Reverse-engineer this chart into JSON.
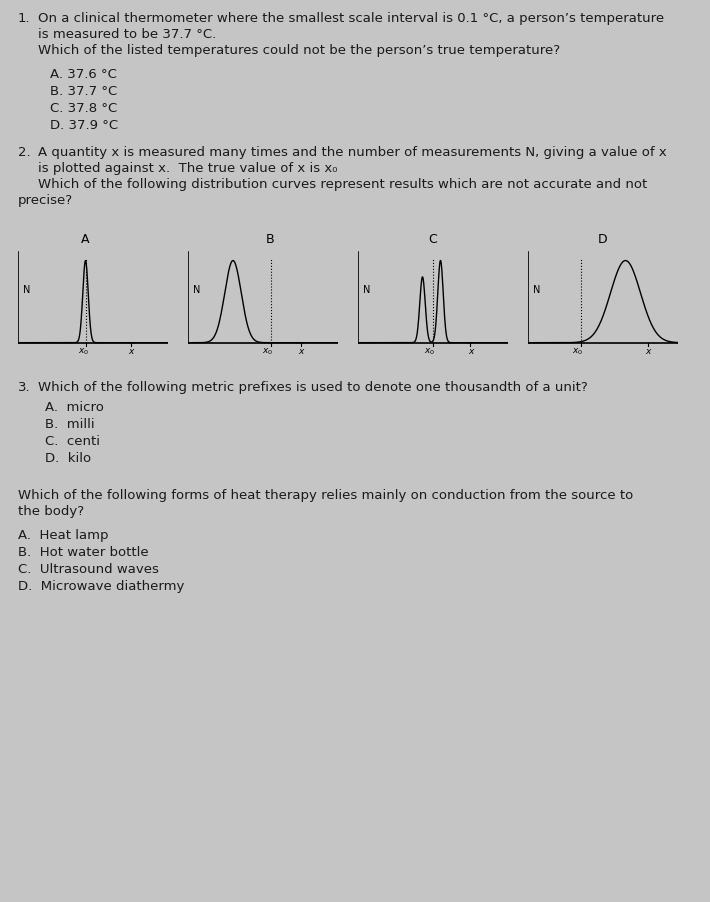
{
  "bg_color": "#c5c5c5",
  "text_color": "#1a1a1a",
  "font_size_body": 9.5,
  "q1_num": "1.",
  "q1_line1": "On a clinical thermometer where the smallest scale interval is 0.1 °C, a person’s temperature",
  "q1_line2": "is measured to be 37.7 °C.",
  "q1_line3": "Which of the listed temperatures could not be the person’s true temperature?",
  "q1_opts": [
    "A. 37.6 °C",
    "B. 37.7 °C",
    "C. 37.8 °C",
    "D. 37.9 °C"
  ],
  "q2_num": "2.",
  "q2_line1": "A quantity x is measured many times and the number of measurements N, giving a value of x",
  "q2_line2": "is plotted against x.  The true value of x is x₀",
  "q2_line3": "Which of the following distribution curves represent results which are not accurate and not",
  "q2_line4": "precise?",
  "q3_num": "3.",
  "q3_line1": "Which of the following metric prefixes is used to denote one thousandth of a unit?",
  "q3_opts": [
    "A.  micro",
    "B.  milli",
    "C.  centi",
    "D.  kilo"
  ],
  "q4_line1": "Which of the following forms of heat therapy relies mainly on conduction from the source to",
  "q4_line2": "the body?",
  "q4_opts": [
    "A.  Heat lamp",
    "B.  Hot water bottle",
    "C.  Ultrasound waves",
    "D.  Microwave diathermy"
  ]
}
